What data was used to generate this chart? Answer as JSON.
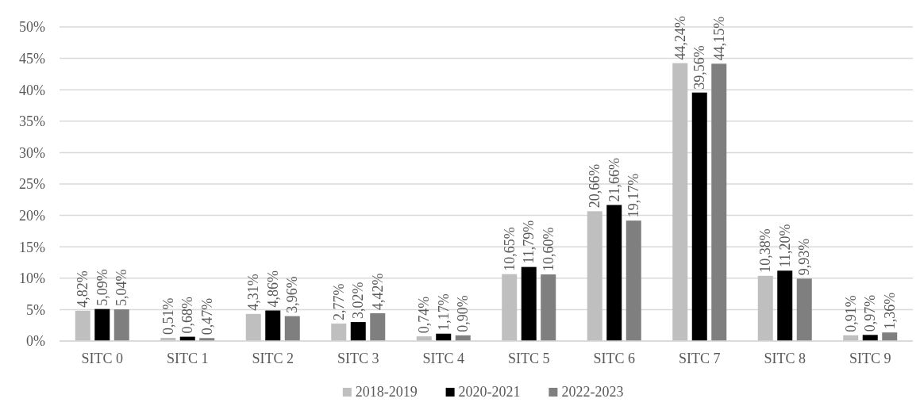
{
  "chart_data": {
    "type": "bar",
    "categories": [
      "SITC 0",
      "SITC 1",
      "SITC 2",
      "SITC 3",
      "SITC 4",
      "SITC 5",
      "SITC 6",
      "SITC 7",
      "SITC 8",
      "SITC 9"
    ],
    "series": [
      {
        "name": "2018-2019",
        "color": "#bfbfbf",
        "values": [
          4.82,
          0.51,
          4.31,
          2.77,
          0.74,
          10.65,
          20.66,
          44.24,
          10.38,
          0.91
        ],
        "value_labels": [
          "4,82%",
          "0,51%",
          "4,31%",
          "2,77%",
          "0,74%",
          "10,65%",
          "20,66%",
          "44,24%",
          "10,38%",
          "0,91%"
        ]
      },
      {
        "name": "2020-2021",
        "color": "#000000",
        "values": [
          5.09,
          0.68,
          4.86,
          3.02,
          1.17,
          11.79,
          21.66,
          39.56,
          11.2,
          0.97
        ],
        "value_labels": [
          "5,09%",
          "0,68%",
          "4,86%",
          "3,02%",
          "1,17%",
          "11,79%",
          "21,66%",
          "39,56%",
          "11,20%",
          "0,97%"
        ]
      },
      {
        "name": "2022-2023",
        "color": "#7f7f7f",
        "values": [
          5.04,
          0.47,
          3.96,
          4.42,
          0.9,
          10.6,
          19.17,
          44.15,
          9.93,
          1.36
        ],
        "value_labels": [
          "5,04%",
          "0,47%",
          "3,96%",
          "4,42%",
          "0,90%",
          "10,60%",
          "19,17%",
          "44,15%",
          "9,93%",
          "1,36%"
        ]
      }
    ],
    "ylim": [
      0,
      50
    ],
    "yticks": [
      {
        "value": 0,
        "label": "0%"
      },
      {
        "value": 5,
        "label": "5%"
      },
      {
        "value": 10,
        "label": "10%"
      },
      {
        "value": 15,
        "label": "15%"
      },
      {
        "value": 20,
        "label": "20%"
      },
      {
        "value": 25,
        "label": "25%"
      },
      {
        "value": 30,
        "label": "30%"
      },
      {
        "value": 35,
        "label": "35%"
      },
      {
        "value": 40,
        "label": "40%"
      },
      {
        "value": 45,
        "label": "45%"
      },
      {
        "value": 50,
        "label": "50%"
      }
    ],
    "grid": "y",
    "legend": "bottom"
  }
}
